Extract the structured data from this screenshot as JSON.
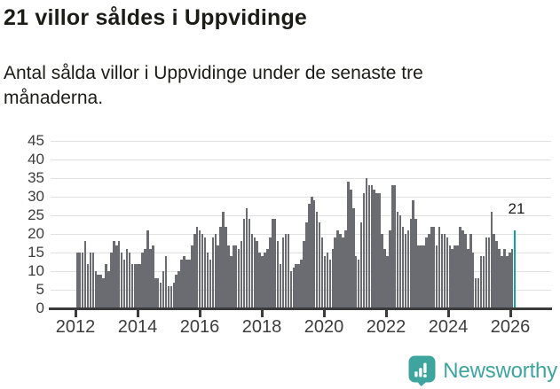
{
  "header": {
    "title": "21 villor såldes i Uppvidinge",
    "subtitle": "Antal sålda villor i Uppvidinge under de senaste tre månaderna."
  },
  "chart_data": {
    "type": "bar",
    "title": "21 villor såldes i Uppvidinge",
    "subtitle": "Antal sålda villor i Uppvidinge under de senaste tre månaderna.",
    "x_start": "2012-01",
    "x_end": "2026-01",
    "frequency": "monthly",
    "values": [
      15,
      15,
      15,
      18,
      12,
      15,
      15,
      10,
      9,
      9,
      8,
      12,
      10,
      15,
      18,
      17,
      18,
      15,
      13,
      16,
      15,
      12,
      12,
      12,
      12,
      15,
      16,
      21,
      16,
      17,
      8,
      8,
      7,
      10,
      14,
      6,
      6,
      7,
      9,
      10,
      13,
      14,
      13,
      13,
      17,
      20,
      22,
      21,
      20,
      19,
      15,
      13,
      19,
      20,
      17,
      22,
      26,
      22,
      17,
      14,
      17,
      17,
      16,
      18,
      24,
      27,
      24,
      20,
      19,
      18,
      15,
      14,
      15,
      16,
      19,
      24,
      24,
      18,
      12,
      19,
      20,
      20,
      10,
      11,
      12,
      12,
      13,
      18,
      23,
      28,
      30,
      29,
      26,
      23,
      19,
      14,
      15,
      13,
      16,
      19,
      21,
      20,
      19,
      21,
      34,
      32,
      27,
      14,
      13,
      23,
      31,
      35,
      33,
      33,
      32,
      31,
      31,
      20,
      16,
      14,
      21,
      33,
      33,
      26,
      25,
      22,
      20,
      21,
      24,
      29,
      24,
      17,
      17,
      17,
      19,
      20,
      22,
      22,
      17,
      22,
      20,
      20,
      19,
      17,
      16,
      17,
      17,
      22,
      21,
      20,
      16,
      20,
      15,
      8,
      8,
      14,
      14,
      19,
      19,
      26,
      20,
      18,
      16,
      14,
      16,
      14,
      15,
      16,
      21
    ],
    "highlight": {
      "index": 168,
      "value": 21,
      "label": "21"
    },
    "ylim": [
      0,
      45
    ],
    "yticks": [
      0,
      5,
      10,
      15,
      20,
      25,
      30,
      35,
      40,
      45
    ],
    "xticks": [
      "2012",
      "2014",
      "2016",
      "2018",
      "2020",
      "2022",
      "2024",
      "2026"
    ],
    "grid": true,
    "legend": "none",
    "colors": {
      "bar": "#6b6b72",
      "highlight": "#0ca4a1",
      "gridline": "#e1e1e1",
      "axis": "#3b3b3b"
    }
  },
  "footer": {
    "brand": "Newsworthy",
    "brand_color": "#3ea59e",
    "icon": "bar-chart-speech-bubble-icon"
  }
}
